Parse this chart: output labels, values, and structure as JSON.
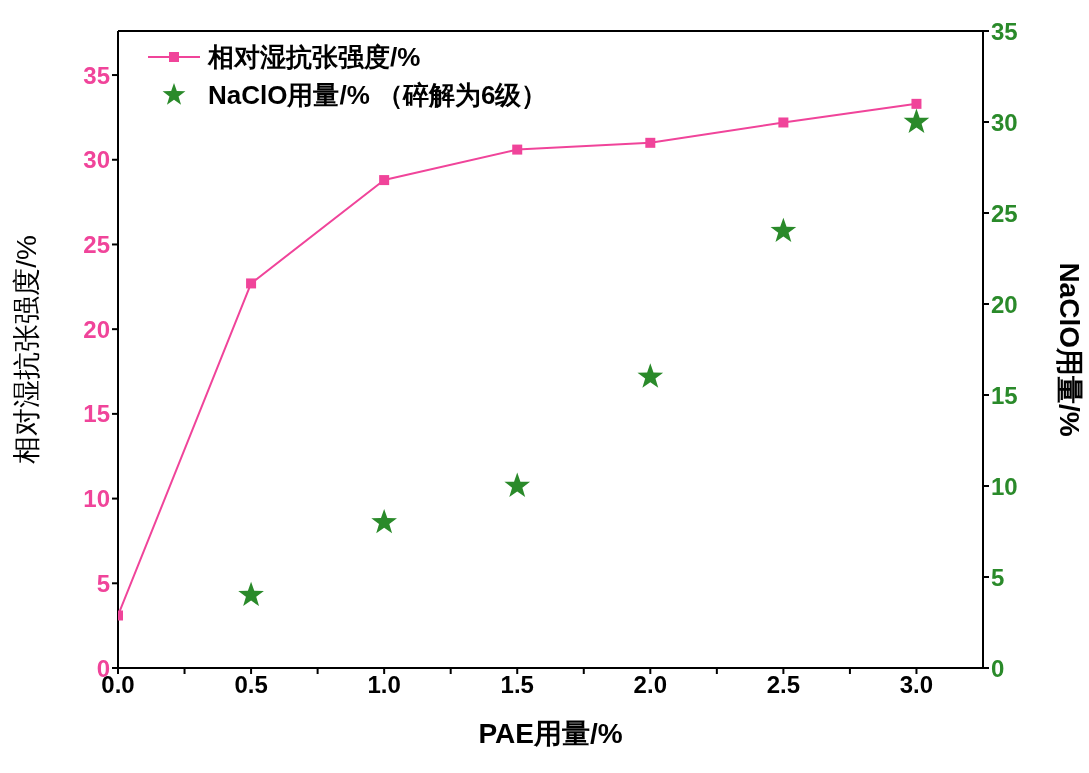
{
  "chart_data": {
    "type": "line",
    "xlabel": "PAE用量/%",
    "ylabel": "相对湿抗张强度/%",
    "y2label": "NaClO用量/%",
    "x": [
      0,
      0.5,
      1.0,
      1.5,
      2.0,
      2.5,
      3.0
    ],
    "series": [
      {
        "name": "相对湿抗张强度/%",
        "marker": "square",
        "color": "#f0449a",
        "values": [
          3.1,
          22.7,
          28.8,
          30.6,
          31.0,
          32.2,
          33.3
        ]
      },
      {
        "name": "NaClO用量/% （碎解为6级）",
        "type": "scatter",
        "marker": "star",
        "axis": "y2",
        "color": "#2a8a2a",
        "values": [
          null,
          4,
          8,
          10,
          16,
          24,
          30
        ]
      }
    ],
    "xlim": [
      0,
      3.25
    ],
    "xticks": [
      {
        "value": 0,
        "label": "0.0"
      },
      {
        "value": 0.25,
        "label": null
      },
      {
        "value": 0.5,
        "label": "0.5"
      },
      {
        "value": 0.75,
        "label": null
      },
      {
        "value": 1,
        "label": "1.0"
      },
      {
        "value": 1.25,
        "label": null
      },
      {
        "value": 1.5,
        "label": "1.5"
      },
      {
        "value": 1.75,
        "label": null
      },
      {
        "value": 2,
        "label": "2.0"
      },
      {
        "value": 2.25,
        "label": null
      },
      {
        "value": 2.5,
        "label": "2.5"
      },
      {
        "value": 2.75,
        "label": null
      },
      {
        "value": 3,
        "label": "3.0"
      }
    ],
    "ylim": [
      0,
      37.6
    ],
    "yticks": [
      0,
      5,
      10,
      15,
      20,
      25,
      30,
      35
    ],
    "y2lim": [
      0,
      35
    ],
    "y2ticks": [
      0,
      5,
      10,
      15,
      20,
      25,
      30,
      35
    ],
    "grid": false,
    "legend": "top left"
  }
}
